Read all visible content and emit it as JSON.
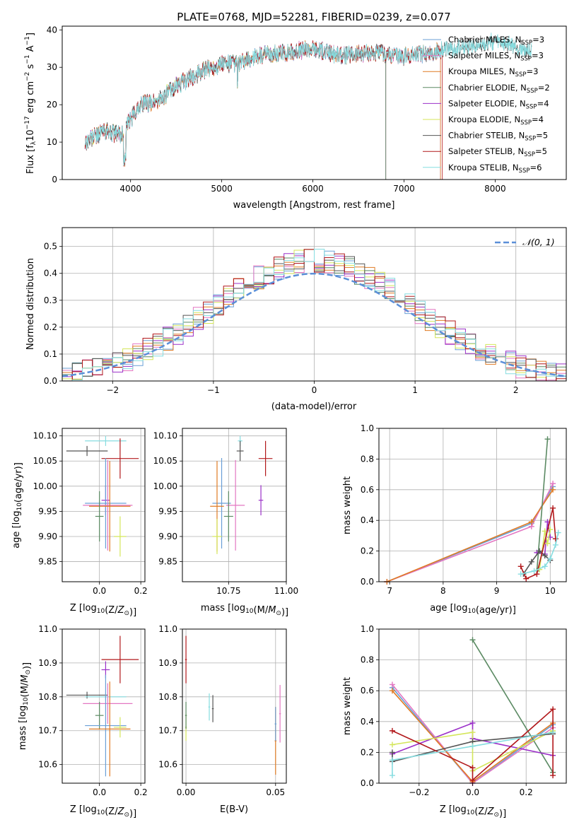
{
  "figure": {
    "title": "PLATE=0768, MJD=52281, FIBERID=0239, z=0.077"
  },
  "colors": {
    "Chabrier MILES": "#6a9fd6",
    "Salpeter MILES": "#e377c2",
    "Kroupa MILES": "#e07b24",
    "Chabrier ELODIE": "#5b8a63",
    "Salpeter ELODIE": "#9b30c8",
    "Kroupa ELODIE": "#d4e65a",
    "Chabrier STELIB": "#555555",
    "Salpeter STELIB": "#b2181b",
    "Kroupa STELIB": "#86dde0",
    "normal": "#5b8fd8"
  },
  "chart_data": [
    {
      "id": "spectrum",
      "type": "line",
      "title": "PLATE=0768, MJD=52281, FIBERID=0239, z=0.077",
      "xlabel": "wavelength [Angstrom, rest frame]",
      "ylabel_parts": [
        "Flux [f",
        "λ",
        "10",
        "−17",
        " erg cm",
        "−2",
        " s",
        "−1",
        " A",
        "−1",
        "]"
      ],
      "xlim": [
        3250,
        8780
      ],
      "ylim": [
        0,
        41
      ],
      "xticks": [
        "4000",
        "5000",
        "6000",
        "7000",
        "8000"
      ],
      "yticks": [
        "0",
        "10",
        "20",
        "30",
        "40"
      ],
      "legend_position": "top-right",
      "legend": [
        {
          "label": "Chabrier MILES, N",
          "sub": "SSP",
          "suffix": "=3",
          "key": "Chabrier MILES"
        },
        {
          "label": "Salpeter MILES, N",
          "sub": "SSP",
          "suffix": "=3",
          "key": "Salpeter MILES"
        },
        {
          "label": "Kroupa MILES, N",
          "sub": "SSP",
          "suffix": "=3",
          "key": "Kroupa MILES"
        },
        {
          "label": "Chabrier ELODIE, N",
          "sub": "SSP",
          "suffix": "=2",
          "key": "Chabrier ELODIE"
        },
        {
          "label": "Salpeter ELODIE, N",
          "sub": "SSP",
          "suffix": "=4",
          "key": "Salpeter ELODIE"
        },
        {
          "label": "Kroupa ELODIE, N",
          "sub": "SSP",
          "suffix": "=4",
          "key": "Kroupa ELODIE"
        },
        {
          "label": "Chabrier STELIB, N",
          "sub": "SSP",
          "suffix": "=5",
          "key": "Chabrier STELIB"
        },
        {
          "label": "Salpeter STELIB, N",
          "sub": "SSP",
          "suffix": "=5",
          "key": "Salpeter STELIB"
        },
        {
          "label": "Kroupa STELIB, N",
          "sub": "SSP",
          "suffix": "=6",
          "key": "Kroupa STELIB"
        }
      ],
      "continuum_wavelength": [
        3500,
        3700,
        3900,
        4000,
        4100,
        4300,
        4500,
        4800,
        5000,
        5200,
        5400,
        5700,
        6000,
        6300,
        6600,
        7000,
        7300,
        7600,
        8000,
        8300,
        8400
      ],
      "continuum_flux": [
        10,
        13,
        12,
        16,
        20,
        21,
        25,
        29,
        31,
        31,
        33,
        34,
        35,
        33,
        34,
        33,
        34,
        35,
        37,
        35,
        34
      ],
      "wavelength_start": 3500,
      "wavelength_end": {
        "Chabrier MILES": 7400,
        "Salpeter MILES": 7400,
        "Kroupa MILES": 7400,
        "Chabrier ELODIE": 6800,
        "Salpeter ELODIE": 6800,
        "Kroupa ELODIE": 6800,
        "Chabrier STELIB": 8400,
        "Salpeter STELIB": 7420,
        "Kroupa STELIB": 8400
      }
    },
    {
      "id": "residuals",
      "type": "step",
      "xlabel": "(data-model)/error",
      "ylabel": "Normed distribution",
      "xlim": [
        -2.5,
        2.5
      ],
      "ylim": [
        0,
        0.57
      ],
      "xticks": [
        "−2",
        "−1",
        "0",
        "1",
        "2"
      ],
      "yticks": [
        "0.0",
        "0.1",
        "0.2",
        "0.3",
        "0.4",
        "0.5"
      ],
      "bin_width": 0.1,
      "legend": [
        {
          "label": "𝒩(0, 1)",
          "key": "normal"
        }
      ],
      "legend_position": "top-right"
    },
    {
      "id": "age-vs-Z",
      "type": "errorbar",
      "xlabel": "Z [log10(Z/Z⊙)]",
      "ylabel": "age  [log10(age/yr)]",
      "xlim": [
        -0.18,
        0.22
      ],
      "ylim": [
        9.81,
        10.115
      ],
      "xticks": [
        "0.0",
        "0.2"
      ],
      "yticks": [
        "9.85",
        "9.90",
        "9.95",
        "10.00",
        "10.05",
        "10.10"
      ],
      "points": [
        {
          "key": "Kroupa STELIB",
          "x": 0.03,
          "xerr": 0.1,
          "y": 10.09,
          "yerr": 0.01
        },
        {
          "key": "Chabrier STELIB",
          "x": -0.06,
          "xerr": 0.1,
          "y": 10.07,
          "yerr": 0.01
        },
        {
          "key": "Salpeter STELIB",
          "x": 0.1,
          "xerr": 0.09,
          "y": 10.055,
          "yerr": 0.04
        },
        {
          "key": "Salpeter ELODIE",
          "x": 0.03,
          "xerr": 0.02,
          "y": 9.972,
          "yerr": 0.03
        },
        {
          "key": "Chabrier MILES",
          "x": 0.03,
          "xerr": 0.1,
          "y": 9.966,
          "yerr": 0.09
        },
        {
          "key": "Salpeter MILES",
          "x": 0.04,
          "xerr": 0.12,
          "y": 9.962,
          "yerr": 0.09
        },
        {
          "key": "Kroupa MILES",
          "x": 0.05,
          "xerr": 0.1,
          "y": 9.96,
          "yerr": 0.09
        },
        {
          "key": "Chabrier ELODIE",
          "x": 0.0,
          "xerr": 0.02,
          "y": 9.94,
          "yerr": 0.05
        },
        {
          "key": "Kroupa ELODIE",
          "x": 0.1,
          "xerr": 0.03,
          "y": 9.9,
          "yerr": 0.04
        }
      ]
    },
    {
      "id": "age-vs-mass",
      "type": "errorbar",
      "xlabel": "mass [log10(M/M⊙)]",
      "ylabel": "",
      "xlim": [
        10.55,
        11.0
      ],
      "ylim": [
        9.81,
        10.115
      ],
      "xticks": [
        "10.75",
        "11.00"
      ],
      "xtick_values": [
        10.75,
        11.0
      ],
      "yticks": [
        "9.85",
        "9.90",
        "9.95",
        "10.00",
        "10.05",
        "10.10"
      ],
      "points": [
        {
          "key": "Kroupa STELIB",
          "x": 10.8,
          "xerr": 0.01,
          "y": 10.09,
          "yerr": 0.01
        },
        {
          "key": "Chabrier STELIB",
          "x": 10.8,
          "xerr": 0.015,
          "y": 10.07,
          "yerr": 0.02
        },
        {
          "key": "Salpeter STELIB",
          "x": 10.91,
          "xerr": 0.03,
          "y": 10.055,
          "yerr": 0.035
        },
        {
          "key": "Salpeter ELODIE",
          "x": 10.89,
          "xerr": 0.01,
          "y": 9.972,
          "yerr": 0.03
        },
        {
          "key": "Chabrier MILES",
          "x": 10.72,
          "xerr": 0.04,
          "y": 9.966,
          "yerr": 0.09
        },
        {
          "key": "Salpeter MILES",
          "x": 10.78,
          "xerr": 0.04,
          "y": 9.962,
          "yerr": 0.09
        },
        {
          "key": "Kroupa MILES",
          "x": 10.7,
          "xerr": 0.03,
          "y": 9.96,
          "yerr": 0.09
        },
        {
          "key": "Chabrier ELODIE",
          "x": 10.75,
          "xerr": 0.02,
          "y": 9.94,
          "yerr": 0.05
        },
        {
          "key": "Kroupa ELODIE",
          "x": 10.7,
          "xerr": 0.02,
          "y": 9.9,
          "yerr": 0.035
        }
      ]
    },
    {
      "id": "weight-vs-age",
      "type": "line",
      "xlabel": "age  [log10(age/yr)]",
      "ylabel": "mass weight",
      "xlim": [
        6.8,
        10.3
      ],
      "ylim": [
        0,
        1.0
      ],
      "xticks": [
        "7",
        "8",
        "9",
        "10"
      ],
      "yticks": [
        "0.0",
        "0.2",
        "0.4",
        "0.6",
        "0.8",
        "1.0"
      ],
      "series": [
        {
          "key": "Chabrier MILES",
          "x": [
            6.95,
            9.65,
            10.05
          ],
          "y": [
            0.0,
            0.38,
            0.62
          ]
        },
        {
          "key": "Salpeter MILES",
          "x": [
            6.95,
            9.65,
            10.05
          ],
          "y": [
            0.0,
            0.36,
            0.64
          ]
        },
        {
          "key": "Kroupa MILES",
          "x": [
            6.95,
            9.65,
            10.05
          ],
          "y": [
            0.0,
            0.39,
            0.6
          ]
        },
        {
          "key": "Chabrier ELODIE",
          "x": [
            9.75,
            9.95
          ],
          "y": [
            0.07,
            0.93
          ]
        },
        {
          "key": "Salpeter ELODIE",
          "x": [
            9.75,
            9.9,
            9.95,
            10.0
          ],
          "y": [
            0.19,
            0.18,
            0.39,
            0.29
          ]
        },
        {
          "key": "Kroupa ELODIE",
          "x": [
            9.8,
            9.9,
            9.95,
            10.0
          ],
          "y": [
            0.08,
            0.33,
            0.25,
            0.34
          ]
        },
        {
          "key": "Chabrier STELIB",
          "x": [
            9.5,
            9.65,
            9.8,
            9.9,
            10.0
          ],
          "y": [
            0.05,
            0.13,
            0.2,
            0.17,
            0.14
          ]
        },
        {
          "key": "Salpeter STELIB",
          "x": [
            9.45,
            9.55,
            9.75,
            10.05,
            10.1
          ],
          "y": [
            0.1,
            0.02,
            0.05,
            0.48,
            0.28
          ]
        },
        {
          "key": "Kroupa STELIB",
          "x": [
            9.45,
            9.7,
            9.9,
            10.0,
            10.1,
            10.15
          ],
          "y": [
            0.05,
            0.07,
            0.1,
            0.15,
            0.24,
            0.32
          ]
        }
      ]
    },
    {
      "id": "mass-vs-Z",
      "type": "errorbar",
      "xlabel": "Z [log10(Z/Z⊙)]",
      "ylabel": "mass [log10(M/M⊙)]",
      "xlim": [
        -0.18,
        0.22
      ],
      "ylim": [
        10.545,
        11.0
      ],
      "xticks": [
        "0.0",
        "0.2"
      ],
      "yticks": [
        "10.6",
        "10.7",
        "10.8",
        "10.9",
        "11.0"
      ],
      "points": [
        {
          "key": "Salpeter STELIB",
          "x": 0.1,
          "xerr": 0.09,
          "y": 10.91,
          "yerr": 0.07
        },
        {
          "key": "Salpeter ELODIE",
          "x": 0.03,
          "xerr": 0.02,
          "y": 10.88,
          "yerr": 0.025
        },
        {
          "key": "Chabrier STELIB",
          "x": -0.06,
          "xerr": 0.1,
          "y": 10.805,
          "yerr": 0.01
        },
        {
          "key": "Kroupa STELIB",
          "x": 0.03,
          "xerr": 0.1,
          "y": 10.8,
          "yerr": 0.01
        },
        {
          "key": "Salpeter MILES",
          "x": 0.04,
          "xerr": 0.12,
          "y": 10.78,
          "yerr": 0.06
        },
        {
          "key": "Chabrier ELODIE",
          "x": 0.0,
          "xerr": 0.02,
          "y": 10.745,
          "yerr": 0.04
        },
        {
          "key": "Chabrier MILES",
          "x": 0.03,
          "xerr": 0.1,
          "y": 10.715,
          "yerr": 0.15
        },
        {
          "key": "Kroupa MILES",
          "x": 0.05,
          "xerr": 0.1,
          "y": 10.705,
          "yerr": 0.14
        },
        {
          "key": "Kroupa ELODIE",
          "x": 0.1,
          "xerr": 0.03,
          "y": 10.71,
          "yerr": 0.03
        }
      ]
    },
    {
      "id": "mass-vs-ebv",
      "type": "errorbar",
      "xlabel": "E(B-V)",
      "ylabel": "",
      "xlim": [
        -0.002,
        0.056
      ],
      "ylim": [
        10.545,
        11.0
      ],
      "xticks": [
        "0.00",
        "0.05"
      ],
      "xtick_values": [
        0.0,
        0.05
      ],
      "yticks": [
        "10.6",
        "10.7",
        "10.8",
        "10.9",
        "11.0"
      ],
      "points": [
        {
          "key": "Salpeter STELIB",
          "x": 0.0,
          "xerr": 0.0005,
          "y": 10.91,
          "yerr": 0.07
        },
        {
          "key": "Kroupa STELIB",
          "x": 0.013,
          "xerr": 0.0005,
          "y": 10.77,
          "yerr": 0.04
        },
        {
          "key": "Chabrier STELIB",
          "x": 0.015,
          "xerr": 0.0005,
          "y": 10.765,
          "yerr": 0.04
        },
        {
          "key": "Kroupa ELODIE",
          "x": 0.0,
          "xerr": 0.0005,
          "y": 10.71,
          "yerr": 0.04
        },
        {
          "key": "Chabrier ELODIE",
          "x": 0.0,
          "xerr": 0.0005,
          "y": 10.745,
          "yerr": 0.04
        },
        {
          "key": "Salpeter MILES",
          "x": 0.0525,
          "xerr": 0.0005,
          "y": 10.75,
          "yerr": 0.085
        },
        {
          "key": "Kroupa MILES",
          "x": 0.05,
          "xerr": 0.0005,
          "y": 10.67,
          "yerr": 0.1
        },
        {
          "key": "Chabrier MILES",
          "x": 0.05,
          "xerr": 0.0005,
          "y": 10.72,
          "yerr": 0.05
        }
      ]
    },
    {
      "id": "weight-vs-Z",
      "type": "line",
      "xlabel": "Z [log10(Z/Z⊙)]",
      "ylabel": "mass weight",
      "xlim": [
        -0.35,
        0.35
      ],
      "ylim": [
        0,
        1.0
      ],
      "xticks": [
        "−0.2",
        "0.0",
        "0.2"
      ],
      "xtick_values": [
        -0.2,
        0.0,
        0.2
      ],
      "yticks": [
        "0.0",
        "0.2",
        "0.4",
        "0.6",
        "0.8",
        "1.0"
      ],
      "series": [
        {
          "key": "Chabrier MILES",
          "x": [
            -0.3,
            0.0,
            0.3
          ],
          "y": [
            0.62,
            0.0,
            0.38
          ]
        },
        {
          "key": "Salpeter MILES",
          "x": [
            -0.3,
            0.0,
            0.3
          ],
          "y": [
            0.64,
            0.0,
            0.36
          ]
        },
        {
          "key": "Kroupa MILES",
          "x": [
            -0.3,
            0.0,
            0.3
          ],
          "y": [
            0.6,
            0.01,
            0.39
          ]
        },
        {
          "key": "Chabrier ELODIE",
          "x": [
            0.0,
            0.3
          ],
          "y": [
            0.93,
            0.07
          ]
        },
        {
          "key": "Salpeter ELODIE",
          "x": [
            -0.3,
            0.0,
            0.0,
            0.3
          ],
          "y": [
            0.19,
            0.39,
            0.29,
            0.18
          ]
        },
        {
          "key": "Kroupa ELODIE",
          "x": [
            -0.3,
            0.0,
            0.0,
            0.3
          ],
          "y": [
            0.25,
            0.33,
            0.08,
            0.34
          ]
        },
        {
          "key": "Chabrier STELIB",
          "x": [
            -0.3,
            -0.3,
            0.0,
            0.3
          ],
          "y": [
            0.2,
            0.14,
            0.27,
            0.32
          ]
        },
        {
          "key": "Salpeter STELIB",
          "x": [
            -0.3,
            0.0,
            0.0,
            0.3,
            0.3
          ],
          "y": [
            0.34,
            0.1,
            0.02,
            0.48,
            0.05
          ]
        },
        {
          "key": "Kroupa STELIB",
          "x": [
            -0.3,
            -0.3,
            0.0,
            0.3
          ],
          "y": [
            0.05,
            0.15,
            0.24,
            0.33
          ]
        }
      ]
    }
  ]
}
